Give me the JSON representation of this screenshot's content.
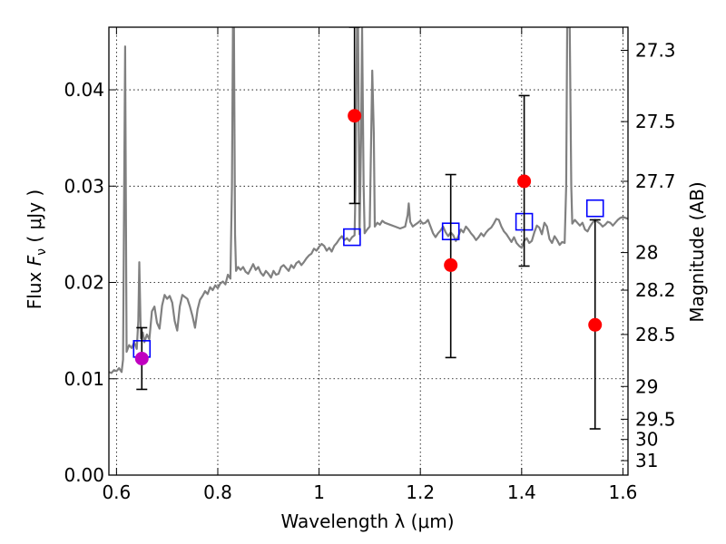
{
  "chart_data": {
    "type": "scatter",
    "xlabel": "Wavelength  λ (μm)",
    "ylabel_left": {
      "prefix": "Flux  ",
      "symbol": "F",
      "subscript": "ν",
      "suffix": "  ( μJy )"
    },
    "ylabel_right": "Magnitude (AB)",
    "xlim": [
      0.585,
      1.61
    ],
    "ylim": [
      0.0,
      0.0465
    ],
    "grid": true,
    "x_ticks": [
      0.6,
      0.8,
      1.0,
      1.2,
      1.4,
      1.6
    ],
    "x_tick_labels": [
      "0.6",
      "0.8",
      "1",
      "1.2",
      "1.4",
      "1.6"
    ],
    "y_ticks": [
      0.0,
      0.01,
      0.02,
      0.03,
      0.04
    ],
    "y_tick_labels": [
      "0.00",
      "0.01",
      "0.02",
      "0.03",
      "0.04"
    ],
    "right_axis_ticks": [
      {
        "label": "27.3",
        "flux": 0.0441
      },
      {
        "label": "27.5",
        "flux": 0.0367
      },
      {
        "label": "27.7",
        "flux": 0.0305
      },
      {
        "label": "28",
        "flux": 0.0231
      },
      {
        "label": "28.2",
        "flux": 0.0192
      },
      {
        "label": "28.5",
        "flux": 0.0146
      },
      {
        "label": "29",
        "flux": 0.0092
      },
      {
        "label": "29.5",
        "flux": 0.0058
      },
      {
        "label": "30",
        "flux": 0.0037
      },
      {
        "label": "31",
        "flux": 0.0015
      }
    ],
    "series": [
      {
        "kind": "spectrum",
        "color": "#808080",
        "points": [
          [
            0.585,
            0.0107
          ],
          [
            0.59,
            0.0106
          ],
          [
            0.595,
            0.0109
          ],
          [
            0.6,
            0.0108
          ],
          [
            0.605,
            0.0111
          ],
          [
            0.61,
            0.0107
          ],
          [
            0.613,
            0.012
          ],
          [
            0.615,
            0.028
          ],
          [
            0.617,
            0.0445
          ],
          [
            0.62,
            0.0128
          ],
          [
            0.625,
            0.0135
          ],
          [
            0.63,
            0.0132
          ],
          [
            0.635,
            0.0138
          ],
          [
            0.64,
            0.0131
          ],
          [
            0.643,
            0.016
          ],
          [
            0.645,
            0.0221
          ],
          [
            0.648,
            0.0142
          ],
          [
            0.652,
            0.0148
          ],
          [
            0.655,
            0.0138
          ],
          [
            0.66,
            0.0146
          ],
          [
            0.665,
            0.0141
          ],
          [
            0.67,
            0.017
          ],
          [
            0.675,
            0.0175
          ],
          [
            0.68,
            0.0158
          ],
          [
            0.685,
            0.0152
          ],
          [
            0.69,
            0.0176
          ],
          [
            0.695,
            0.0187
          ],
          [
            0.7,
            0.0183
          ],
          [
            0.705,
            0.0186
          ],
          [
            0.71,
            0.0179
          ],
          [
            0.715,
            0.016
          ],
          [
            0.72,
            0.015
          ],
          [
            0.725,
            0.0175
          ],
          [
            0.73,
            0.0187
          ],
          [
            0.735,
            0.0185
          ],
          [
            0.74,
            0.0183
          ],
          [
            0.745,
            0.0175
          ],
          [
            0.75,
            0.0165
          ],
          [
            0.755,
            0.0153
          ],
          [
            0.76,
            0.0172
          ],
          [
            0.765,
            0.0182
          ],
          [
            0.77,
            0.0186
          ],
          [
            0.775,
            0.0191
          ],
          [
            0.78,
            0.0188
          ],
          [
            0.785,
            0.0195
          ],
          [
            0.79,
            0.0192
          ],
          [
            0.795,
            0.0197
          ],
          [
            0.8,
            0.0194
          ],
          [
            0.805,
            0.0199
          ],
          [
            0.81,
            0.0201
          ],
          [
            0.815,
            0.0198
          ],
          [
            0.82,
            0.0208
          ],
          [
            0.825,
            0.0204
          ],
          [
            0.828,
            0.03
          ],
          [
            0.83,
            0.0465
          ],
          [
            0.832,
            0.0465
          ],
          [
            0.834,
            0.025
          ],
          [
            0.836,
            0.0212
          ],
          [
            0.84,
            0.0216
          ],
          [
            0.845,
            0.0213
          ],
          [
            0.85,
            0.0216
          ],
          [
            0.855,
            0.0211
          ],
          [
            0.86,
            0.0209
          ],
          [
            0.865,
            0.0214
          ],
          [
            0.87,
            0.0219
          ],
          [
            0.875,
            0.0213
          ],
          [
            0.88,
            0.0216
          ],
          [
            0.885,
            0.021
          ],
          [
            0.89,
            0.0207
          ],
          [
            0.895,
            0.0212
          ],
          [
            0.9,
            0.0209
          ],
          [
            0.905,
            0.0205
          ],
          [
            0.91,
            0.0212
          ],
          [
            0.915,
            0.0208
          ],
          [
            0.92,
            0.0209
          ],
          [
            0.925,
            0.0216
          ],
          [
            0.93,
            0.0218
          ],
          [
            0.935,
            0.0215
          ],
          [
            0.94,
            0.0212
          ],
          [
            0.945,
            0.0218
          ],
          [
            0.95,
            0.0215
          ],
          [
            0.955,
            0.022
          ],
          [
            0.96,
            0.0222
          ],
          [
            0.965,
            0.0218
          ],
          [
            0.97,
            0.0221
          ],
          [
            0.975,
            0.0225
          ],
          [
            0.98,
            0.0228
          ],
          [
            0.985,
            0.023
          ],
          [
            0.99,
            0.0235
          ],
          [
            0.995,
            0.0233
          ],
          [
            1.0,
            0.0237
          ],
          [
            1.005,
            0.024
          ],
          [
            1.01,
            0.0238
          ],
          [
            1.015,
            0.0233
          ],
          [
            1.02,
            0.0236
          ],
          [
            1.025,
            0.0232
          ],
          [
            1.03,
            0.0238
          ],
          [
            1.035,
            0.0241
          ],
          [
            1.04,
            0.0245
          ],
          [
            1.045,
            0.0248
          ],
          [
            1.05,
            0.0244
          ],
          [
            1.055,
            0.0246
          ],
          [
            1.06,
            0.0243
          ],
          [
            1.065,
            0.0247
          ],
          [
            1.07,
            0.0249
          ],
          [
            1.072,
            0.03
          ],
          [
            1.075,
            0.0465
          ],
          [
            1.077,
            0.0465
          ],
          [
            1.08,
            0.025
          ],
          [
            1.083,
            0.035
          ],
          [
            1.085,
            0.0465
          ],
          [
            1.088,
            0.03
          ],
          [
            1.09,
            0.0251
          ],
          [
            1.095,
            0.0255
          ],
          [
            1.1,
            0.0258
          ],
          [
            1.105,
            0.042
          ],
          [
            1.108,
            0.0355
          ],
          [
            1.11,
            0.0258
          ],
          [
            1.115,
            0.0262
          ],
          [
            1.12,
            0.026
          ],
          [
            1.125,
            0.0264
          ],
          [
            1.13,
            0.0262
          ],
          [
            1.14,
            0.026
          ],
          [
            1.15,
            0.0258
          ],
          [
            1.16,
            0.0256
          ],
          [
            1.165,
            0.0257
          ],
          [
            1.17,
            0.0258
          ],
          [
            1.175,
            0.027
          ],
          [
            1.177,
            0.0282
          ],
          [
            1.18,
            0.0263
          ],
          [
            1.185,
            0.0258
          ],
          [
            1.19,
            0.026
          ],
          [
            1.195,
            0.0262
          ],
          [
            1.2,
            0.0264
          ],
          [
            1.205,
            0.0261
          ],
          [
            1.21,
            0.0262
          ],
          [
            1.215,
            0.0265
          ],
          [
            1.22,
            0.0258
          ],
          [
            1.225,
            0.0251
          ],
          [
            1.23,
            0.0247
          ],
          [
            1.235,
            0.0251
          ],
          [
            1.24,
            0.0254
          ],
          [
            1.245,
            0.0258
          ],
          [
            1.25,
            0.0252
          ],
          [
            1.255,
            0.0248
          ],
          [
            1.26,
            0.0252
          ],
          [
            1.265,
            0.0249
          ],
          [
            1.27,
            0.0243
          ],
          [
            1.275,
            0.0248
          ],
          [
            1.28,
            0.0255
          ],
          [
            1.285,
            0.0252
          ],
          [
            1.29,
            0.0258
          ],
          [
            1.295,
            0.0255
          ],
          [
            1.3,
            0.0251
          ],
          [
            1.305,
            0.0248
          ],
          [
            1.31,
            0.0244
          ],
          [
            1.315,
            0.0247
          ],
          [
            1.32,
            0.0251
          ],
          [
            1.325,
            0.0248
          ],
          [
            1.33,
            0.0252
          ],
          [
            1.335,
            0.0255
          ],
          [
            1.34,
            0.0257
          ],
          [
            1.345,
            0.0261
          ],
          [
            1.35,
            0.0266
          ],
          [
            1.355,
            0.0265
          ],
          [
            1.36,
            0.0258
          ],
          [
            1.365,
            0.0253
          ],
          [
            1.37,
            0.025
          ],
          [
            1.375,
            0.0246
          ],
          [
            1.38,
            0.0242
          ],
          [
            1.385,
            0.0247
          ],
          [
            1.39,
            0.0241
          ],
          [
            1.395,
            0.0238
          ],
          [
            1.4,
            0.0236
          ],
          [
            1.405,
            0.0243
          ],
          [
            1.41,
            0.0246
          ],
          [
            1.415,
            0.0241
          ],
          [
            1.42,
            0.0243
          ],
          [
            1.425,
            0.0252
          ],
          [
            1.43,
            0.0259
          ],
          [
            1.435,
            0.0257
          ],
          [
            1.44,
            0.025
          ],
          [
            1.445,
            0.0262
          ],
          [
            1.45,
            0.0258
          ],
          [
            1.455,
            0.0245
          ],
          [
            1.46,
            0.0241
          ],
          [
            1.465,
            0.0248
          ],
          [
            1.47,
            0.0244
          ],
          [
            1.475,
            0.0239
          ],
          [
            1.48,
            0.0242
          ],
          [
            1.485,
            0.0241
          ],
          [
            1.488,
            0.03
          ],
          [
            1.49,
            0.0465
          ],
          [
            1.495,
            0.0465
          ],
          [
            1.498,
            0.03
          ],
          [
            1.5,
            0.0261
          ],
          [
            1.505,
            0.0265
          ],
          [
            1.51,
            0.0262
          ],
          [
            1.515,
            0.0259
          ],
          [
            1.52,
            0.0262
          ],
          [
            1.525,
            0.0255
          ],
          [
            1.53,
            0.0253
          ],
          [
            1.535,
            0.0258
          ],
          [
            1.54,
            0.0262
          ],
          [
            1.545,
            0.0265
          ],
          [
            1.55,
            0.0263
          ],
          [
            1.555,
            0.0261
          ],
          [
            1.56,
            0.0258
          ],
          [
            1.565,
            0.026
          ],
          [
            1.57,
            0.0263
          ],
          [
            1.575,
            0.0262
          ],
          [
            1.58,
            0.0259
          ],
          [
            1.585,
            0.0262
          ],
          [
            1.59,
            0.0265
          ],
          [
            1.595,
            0.0267
          ],
          [
            1.6,
            0.0268
          ],
          [
            1.605,
            0.0267
          ],
          [
            1.61,
            0.0266
          ]
        ]
      },
      {
        "kind": "model_photometry",
        "marker": "open-square",
        "color": "#0000ff",
        "points": [
          {
            "x": 0.65,
            "y": 0.0131
          },
          {
            "x": 1.065,
            "y": 0.0247
          },
          {
            "x": 1.26,
            "y": 0.0253
          },
          {
            "x": 1.405,
            "y": 0.0263
          },
          {
            "x": 1.545,
            "y": 0.0277
          }
        ]
      },
      {
        "kind": "observed_photometry",
        "marker": "filled-circle",
        "color": "#ff0000",
        "errorbar_color": "#000000",
        "points": [
          {
            "x": 0.65,
            "y": 0.0121,
            "y_low": 0.0089,
            "y_high": 0.0153,
            "color": "#c000c0"
          },
          {
            "x": 1.07,
            "y": 0.0373,
            "y_low": 0.0282,
            "y_high": 0.0465
          },
          {
            "x": 1.26,
            "y": 0.0218,
            "y_low": 0.0122,
            "y_high": 0.0312
          },
          {
            "x": 1.405,
            "y": 0.0305,
            "y_low": 0.0217,
            "y_high": 0.0394
          },
          {
            "x": 1.545,
            "y": 0.0156,
            "y_low": 0.0048,
            "y_high": 0.0265
          }
        ]
      }
    ]
  }
}
